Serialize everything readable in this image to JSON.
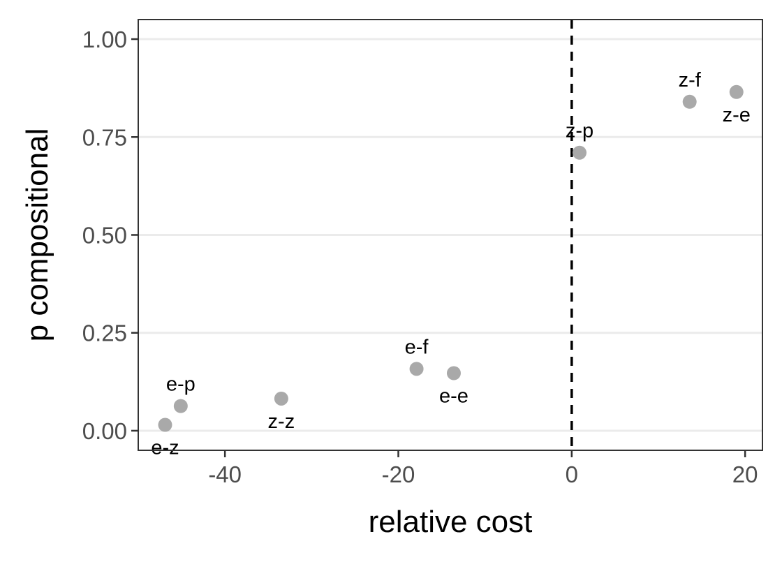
{
  "chart_data": {
    "type": "scatter",
    "title": "",
    "xlabel": "relative cost",
    "ylabel": "p compositional",
    "xlim": [
      -50,
      22
    ],
    "ylim": [
      -0.05,
      1.05
    ],
    "x_ticks": [
      {
        "value": -40,
        "label": "-40"
      },
      {
        "value": -20,
        "label": "-20"
      },
      {
        "value": 0,
        "label": "0"
      },
      {
        "value": 20,
        "label": "20"
      }
    ],
    "y_ticks": [
      {
        "value": 0.0,
        "label": "0.00"
      },
      {
        "value": 0.25,
        "label": "0.25"
      },
      {
        "value": 0.5,
        "label": "0.50"
      },
      {
        "value": 0.75,
        "label": "0.75"
      },
      {
        "value": 1.0,
        "label": "1.00"
      }
    ],
    "grid": "horizontal major",
    "reference_line": {
      "x": 0,
      "style": "dashed",
      "color": "#000000"
    },
    "point_color": "#a9a9a9",
    "points": [
      {
        "label": "z-f",
        "x": 13.6,
        "y": 0.84,
        "label_position": "above"
      },
      {
        "label": "z-e",
        "x": 19.0,
        "y": 0.865,
        "label_position": "below"
      },
      {
        "label": "z-p",
        "x": 0.9,
        "y": 0.71,
        "label_position": "above"
      },
      {
        "label": "e-f",
        "x": -17.9,
        "y": 0.158,
        "label_position": "above"
      },
      {
        "label": "e-e",
        "x": -13.6,
        "y": 0.147,
        "label_position": "below"
      },
      {
        "label": "z-z",
        "x": -33.5,
        "y": 0.082,
        "label_position": "below"
      },
      {
        "label": "e-p",
        "x": -45.1,
        "y": 0.063,
        "label_position": "above"
      },
      {
        "label": "e-z",
        "x": -46.9,
        "y": 0.015,
        "label_position": "below"
      }
    ]
  }
}
